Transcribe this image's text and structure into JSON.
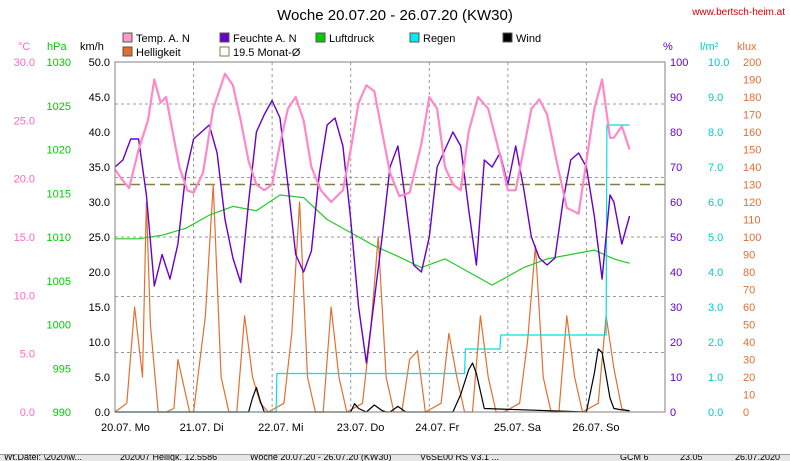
{
  "header": {
    "title": "Woche 20.07.20 - 26.07.20 (KW30)",
    "url": "www.bertsch-heim.at"
  },
  "chart_data": {
    "type": "line",
    "title": "Woche 20.07.20 - 26.07.20 (KW30)",
    "categories": [
      "20.07. Mo",
      "21.07. Di",
      "22.07. Mi",
      "23.07. Do",
      "24.07. Fr",
      "25.07. Sa",
      "26.07. So"
    ],
    "axes": {
      "temp": {
        "unit": "°C",
        "ticks": [
          "30.0",
          "25.0",
          "20.0",
          "15.0",
          "10.0",
          "5.0",
          "0.0"
        ],
        "ylim": [
          0,
          30
        ],
        "color": "#ff66cc"
      },
      "pressure": {
        "unit": "hPa",
        "ticks": [
          "1030",
          "1025",
          "1020",
          "1015",
          "1010",
          "1005",
          "1000",
          "995",
          "990"
        ],
        "ylim": [
          990,
          1030
        ],
        "color": "#00cc00"
      },
      "wind": {
        "unit": "km/h",
        "ticks": [
          "50.0",
          "45.0",
          "40.0",
          "35.0",
          "30.0",
          "25.0",
          "20.0",
          "15.0",
          "10.0",
          "5.0",
          "0.0"
        ],
        "ylim": [
          0,
          50
        ],
        "color": "#000000"
      },
      "humidity": {
        "unit": "%",
        "ticks": [
          "100",
          "90",
          "80",
          "70",
          "60",
          "50",
          "40",
          "30",
          "20",
          "10",
          "0"
        ],
        "ylim": [
          0,
          100
        ],
        "color": "#6600cc"
      },
      "rain": {
        "unit": "l/m²",
        "ticks": [
          "10.0",
          "9.0",
          "8.0",
          "7.0",
          "6.0",
          "5.0",
          "4.0",
          "3.0",
          "2.0",
          "1.0",
          "0.0"
        ],
        "ylim": [
          0,
          10
        ],
        "color": "#00cccc"
      },
      "light": {
        "unit": "klux",
        "ticks": [
          "200",
          "190",
          "180",
          "170",
          "160",
          "150",
          "140",
          "130",
          "120",
          "110",
          "100",
          "90",
          "80",
          "70",
          "60",
          "50",
          "40",
          "30",
          "20",
          "10",
          "0"
        ],
        "ylim": [
          0,
          200
        ],
        "color": "#e07030"
      }
    },
    "legend": [
      {
        "label": "Temp. A. N",
        "color": "#ff99cc"
      },
      {
        "label": "Feuchte A. N",
        "color": "#6600cc"
      },
      {
        "label": "Luftdruck",
        "color": "#00cc00"
      },
      {
        "label": "Regen",
        "color": "#00eeee"
      },
      {
        "label": "Wind",
        "color": "#000000"
      },
      {
        "label": "Helligkeit",
        "color": "#e07030"
      },
      {
        "label": "19.5 Monat-Ø",
        "color": "#808040"
      }
    ],
    "reference_line": {
      "label": "19.5 Monat-Ø",
      "value": 19.5,
      "axis": "temp"
    },
    "series": [
      {
        "name": "Temp. A. N",
        "axis": "temp",
        "color": "#ff88c8",
        "x": [
          0,
          0.08,
          0.18,
          0.3,
          0.42,
          0.5,
          0.58,
          0.65,
          0.72,
          0.82,
          0.92,
          1.0,
          1.12,
          1.25,
          1.4,
          1.5,
          1.6,
          1.7,
          1.8,
          1.9,
          2.0,
          2.1,
          2.2,
          2.3,
          2.4,
          2.5,
          2.62,
          2.75,
          2.9,
          3.0,
          3.1,
          3.2,
          3.3,
          3.4,
          3.5,
          3.62,
          3.75,
          3.9,
          4.0,
          4.1,
          4.2,
          4.3,
          4.4,
          4.5,
          4.62,
          4.75,
          4.9,
          5.0,
          5.1,
          5.2,
          5.3,
          5.4,
          5.5,
          5.62,
          5.75,
          5.9,
          6.0,
          6.1,
          6.2,
          6.3,
          6.35,
          6.45,
          6.55
        ],
        "values": [
          20.8,
          20.0,
          19.2,
          22.5,
          25.0,
          28.5,
          26.5,
          27.0,
          24.5,
          21.0,
          19.0,
          18.8,
          20.5,
          26.0,
          29.0,
          28.0,
          25.0,
          21.5,
          19.5,
          19.0,
          19.5,
          23.0,
          26.0,
          27.0,
          25.0,
          21.0,
          19.0,
          18.0,
          19.0,
          22.5,
          26.5,
          28.0,
          27.5,
          24.0,
          20.5,
          18.5,
          18.8,
          23.0,
          27.0,
          26.0,
          21.0,
          19.5,
          19.0,
          24.0,
          27.0,
          26.0,
          22.0,
          19.0,
          19.0,
          22.5,
          26.0,
          26.8,
          25.5,
          21.5,
          17.5,
          17.0,
          21.5,
          26.0,
          28.5,
          23.5,
          23.5,
          24.5,
          22.5
        ]
      },
      {
        "name": "Feuchte A. N",
        "axis": "humidity",
        "color": "#6600cc",
        "x": [
          0,
          0.1,
          0.2,
          0.3,
          0.4,
          0.5,
          0.6,
          0.7,
          0.8,
          0.9,
          1.0,
          1.1,
          1.2,
          1.3,
          1.4,
          1.5,
          1.6,
          1.7,
          1.8,
          1.9,
          2.0,
          2.1,
          2.2,
          2.3,
          2.4,
          2.5,
          2.6,
          2.7,
          2.8,
          2.9,
          3.0,
          3.1,
          3.2,
          3.3,
          3.4,
          3.5,
          3.6,
          3.7,
          3.8,
          3.9,
          4.0,
          4.1,
          4.2,
          4.3,
          4.4,
          4.5,
          4.6,
          4.7,
          4.8,
          4.9,
          5.0,
          5.1,
          5.2,
          5.3,
          5.4,
          5.5,
          5.6,
          5.7,
          5.8,
          5.9,
          6.0,
          6.1,
          6.2,
          6.3,
          6.35,
          6.45,
          6.55
        ],
        "values": [
          70,
          72,
          78,
          78,
          62,
          36,
          45,
          38,
          48,
          68,
          78,
          80,
          82,
          74,
          55,
          44,
          37,
          60,
          80,
          85,
          89,
          84,
          65,
          45,
          40,
          46,
          68,
          82,
          84,
          76,
          55,
          30,
          14,
          32,
          50,
          70,
          76,
          60,
          42,
          40,
          50,
          70,
          75,
          80,
          76,
          58,
          42,
          72,
          70,
          74,
          65,
          76,
          64,
          50,
          44,
          42,
          44,
          60,
          72,
          74,
          70,
          56,
          38,
          62,
          60,
          48,
          56
        ]
      },
      {
        "name": "Luftdruck",
        "axis": "pressure",
        "color": "#22cc22",
        "x": [
          0,
          0.3,
          0.6,
          0.9,
          1.2,
          1.5,
          1.8,
          2.1,
          2.4,
          2.7,
          3.0,
          3.3,
          3.6,
          3.9,
          4.2,
          4.5,
          4.8,
          5.0,
          5.2,
          5.5,
          5.8,
          6.1,
          6.35,
          6.55
        ],
        "values": [
          1009.8,
          1009.8,
          1010.2,
          1011.0,
          1012.5,
          1013.5,
          1013.0,
          1014.8,
          1014.5,
          1012.0,
          1010.5,
          1009.0,
          1007.8,
          1006.5,
          1007.5,
          1006.0,
          1004.5,
          1005.5,
          1006.5,
          1007.5,
          1008.0,
          1008.5,
          1007.5,
          1007.0
        ]
      },
      {
        "name": "Regen",
        "axis": "rain",
        "color": "#00e0e0",
        "x": [
          0,
          2.05,
          2.06,
          3.4,
          4.45,
          4.46,
          4.9,
          4.91,
          6.25,
          6.26,
          6.55
        ],
        "values": [
          0,
          0,
          1.1,
          1.1,
          1.1,
          1.8,
          1.8,
          2.2,
          2.2,
          8.2,
          8.2
        ]
      },
      {
        "name": "Wind",
        "axis": "wind",
        "color": "#000000",
        "x": [
          0,
          1.7,
          1.75,
          1.8,
          1.85,
          1.9,
          3.0,
          3.05,
          3.1,
          3.2,
          3.3,
          3.4,
          3.45,
          3.5,
          3.6,
          3.7,
          4.3,
          4.4,
          4.5,
          4.55,
          4.6,
          4.7,
          6.0,
          6.1,
          6.15,
          6.2,
          6.3,
          6.35,
          6.45,
          6.55
        ],
        "values": [
          0,
          0,
          2.0,
          3.5,
          1.5,
          0,
          0,
          1.2,
          0.5,
          0,
          1.0,
          0.2,
          0,
          0,
          0.8,
          0,
          0,
          2.5,
          6.0,
          7.0,
          5.5,
          0.5,
          0,
          5.5,
          9.0,
          8.5,
          2.0,
          0.5,
          0.3,
          0.2
        ]
      },
      {
        "name": "Helligkeit",
        "axis": "light",
        "color": "#e07030",
        "x": [
          0,
          0.15,
          0.25,
          0.35,
          0.4,
          0.45,
          0.55,
          0.65,
          0.75,
          0.8,
          0.85,
          0.95,
          1.0,
          1.15,
          1.25,
          1.35,
          1.45,
          1.55,
          1.65,
          1.75,
          1.85,
          1.95,
          2.15,
          2.25,
          2.35,
          2.45,
          2.55,
          2.65,
          2.75,
          2.85,
          2.95,
          3.15,
          3.25,
          3.35,
          3.45,
          3.55,
          3.65,
          3.75,
          3.85,
          3.95,
          4.15,
          4.25,
          4.35,
          4.45,
          4.55,
          4.65,
          4.75,
          4.85,
          4.95,
          5.15,
          5.25,
          5.35,
          5.45,
          5.55,
          5.65,
          5.75,
          5.85,
          5.95,
          6.15,
          6.25,
          6.35,
          6.45,
          6.55
        ],
        "values": [
          0,
          5,
          60,
          20,
          120,
          50,
          0,
          0,
          2,
          30,
          20,
          0,
          0,
          55,
          130,
          20,
          0,
          0,
          55,
          20,
          5,
          0,
          5,
          45,
          120,
          20,
          0,
          0,
          60,
          20,
          0,
          5,
          45,
          100,
          20,
          0,
          0,
          30,
          35,
          0,
          5,
          45,
          20,
          0,
          0,
          55,
          20,
          0,
          0,
          5,
          40,
          95,
          20,
          0,
          0,
          55,
          20,
          0,
          5,
          55,
          25,
          2,
          0
        ]
      }
    ],
    "xlabel": "",
    "ylabel": ""
  },
  "statusbar": {
    "items": [
      "Wt.Datei: \\2020\\w...",
      "202007 Helligk. 12.5586",
      "Woche 20.07.20 - 26.07.20 (KW30)",
      "V6SE00 RS V3.1 ... ",
      "GCM 6",
      "23.05",
      "26.07.2020"
    ]
  }
}
